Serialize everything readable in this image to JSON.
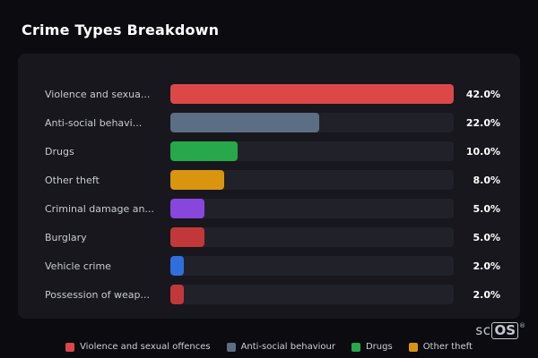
{
  "title": "Crime Types Breakdown",
  "chart_data": {
    "type": "bar",
    "orientation": "horizontal",
    "title": "Crime Types Breakdown",
    "categories": [
      "Violence and sexua...",
      "Anti-social behavi...",
      "Drugs",
      "Other theft",
      "Criminal damage an...",
      "Burglary",
      "Vehicle crime",
      "Possession of weap..."
    ],
    "values": [
      42.0,
      22.0,
      10.0,
      8.0,
      5.0,
      5.0,
      2.0,
      2.0
    ],
    "value_labels": [
      "42.0%",
      "22.0%",
      "10.0%",
      "8.0%",
      "5.0%",
      "5.0%",
      "2.0%",
      "2.0%"
    ],
    "colors": [
      "#dc4848",
      "#5c6e84",
      "#27a84a",
      "#d9950f",
      "#8747dd",
      "#c13838",
      "#2f6fdd",
      "#c13838"
    ],
    "xlim": [
      0,
      42
    ],
    "grid": false,
    "legend_position": "bottom",
    "legend": [
      {
        "label": "Violence and sexual offences",
        "color": "#dc4848"
      },
      {
        "label": "Anti-social behaviour",
        "color": "#5c6e84"
      },
      {
        "label": "Drugs",
        "color": "#27a84a"
      },
      {
        "label": "Other theft",
        "color": "#d9950f"
      }
    ]
  },
  "branding": {
    "prefix": "sc",
    "boxed": "OS",
    "registered": "®"
  }
}
